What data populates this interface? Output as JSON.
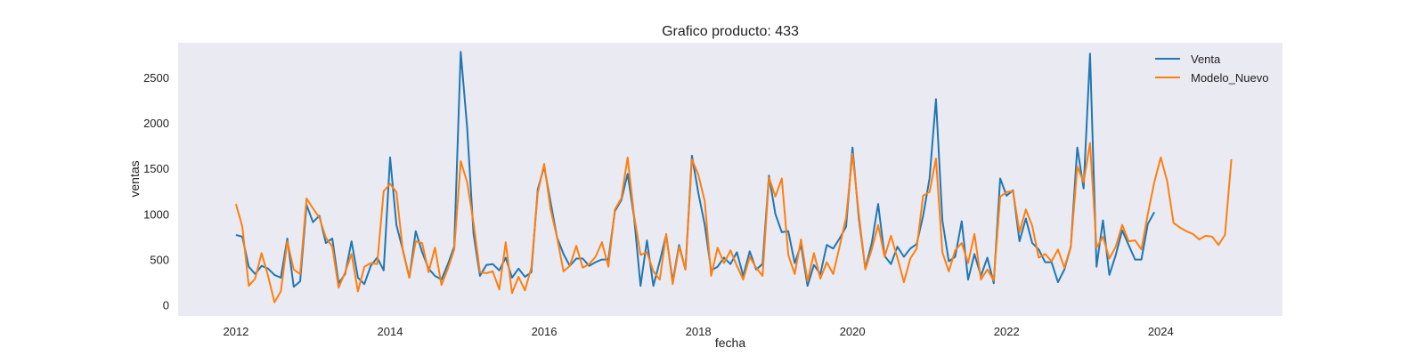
{
  "chart_data": {
    "type": "line",
    "title": "Grafico producto: 433",
    "xlabel": "fecha",
    "ylabel": "ventas",
    "xlim": [
      2011.25,
      2025.58
    ],
    "ylim": [
      -120,
      2880
    ],
    "x_ticks": [
      2012,
      2014,
      2016,
      2018,
      2020,
      2022,
      2024
    ],
    "x_tick_labels": [
      "2012",
      "2014",
      "2016",
      "2018",
      "2020",
      "2022",
      "2024"
    ],
    "y_ticks": [
      0,
      500,
      1000,
      1500,
      2000,
      2500
    ],
    "y_tick_labels": [
      "0",
      "500",
      "1000",
      "1500",
      "2000",
      "2500"
    ],
    "grid": false,
    "legend": "top-right",
    "background": "#eaeaf2",
    "series": [
      {
        "name": "Venta",
        "color": "#1f77b4",
        "x": [
          2012.0,
          2012.083,
          2012.167,
          2012.25,
          2012.333,
          2012.417,
          2012.5,
          2012.583,
          2012.667,
          2012.75,
          2012.833,
          2012.917,
          2013.0,
          2013.083,
          2013.167,
          2013.25,
          2013.333,
          2013.417,
          2013.5,
          2013.583,
          2013.667,
          2013.75,
          2013.833,
          2013.917,
          2014.0,
          2014.083,
          2014.167,
          2014.25,
          2014.333,
          2014.417,
          2014.5,
          2014.583,
          2014.667,
          2014.75,
          2014.833,
          2014.917,
          2015.0,
          2015.083,
          2015.167,
          2015.25,
          2015.333,
          2015.417,
          2015.5,
          2015.583,
          2015.667,
          2015.75,
          2015.833,
          2015.917,
          2016.0,
          2016.083,
          2016.167,
          2016.25,
          2016.333,
          2016.417,
          2016.5,
          2016.583,
          2016.667,
          2016.75,
          2016.833,
          2016.917,
          2017.0,
          2017.083,
          2017.167,
          2017.25,
          2017.333,
          2017.417,
          2017.5,
          2017.583,
          2017.667,
          2017.75,
          2017.833,
          2017.917,
          2018.0,
          2018.083,
          2018.167,
          2018.25,
          2018.333,
          2018.417,
          2018.5,
          2018.583,
          2018.667,
          2018.75,
          2018.833,
          2018.917,
          2019.0,
          2019.083,
          2019.167,
          2019.25,
          2019.333,
          2019.417,
          2019.5,
          2019.583,
          2019.667,
          2019.75,
          2019.833,
          2019.917,
          2020.0,
          2020.083,
          2020.167,
          2020.25,
          2020.333,
          2020.417,
          2020.5,
          2020.583,
          2020.667,
          2020.75,
          2020.833,
          2020.917,
          2021.0,
          2021.083,
          2021.167,
          2021.25,
          2021.333,
          2021.417,
          2021.5,
          2021.583,
          2021.667,
          2021.75,
          2021.833,
          2021.917,
          2022.0,
          2022.083,
          2022.167,
          2022.25,
          2022.333,
          2022.417,
          2022.5,
          2022.583,
          2022.667,
          2022.75,
          2022.833,
          2022.917,
          2023.0,
          2023.083,
          2023.167,
          2023.25,
          2023.333,
          2023.417,
          2023.5,
          2023.583,
          2023.667,
          2023.75,
          2023.833,
          2023.917
        ],
        "y": [
          770,
          750,
          420,
          340,
          430,
          400,
          330,
          300,
          730,
          200,
          260,
          1100,
          910,
          980,
          680,
          730,
          240,
          340,
          700,
          300,
          230,
          430,
          520,
          380,
          1620,
          880,
          600,
          300,
          810,
          580,
          400,
          320,
          280,
          450,
          640,
          2780,
          1950,
          780,
          320,
          440,
          450,
          380,
          520,
          300,
          400,
          310,
          360,
          1270,
          1520,
          1130,
          740,
          560,
          430,
          510,
          510,
          430,
          470,
          500,
          500,
          1030,
          1150,
          1440,
          960,
          210,
          710,
          210,
          480,
          770,
          260,
          660,
          390,
          1640,
          1230,
          880,
          380,
          420,
          520,
          450,
          580,
          320,
          590,
          390,
          450,
          1420,
          1000,
          800,
          810,
          460,
          660,
          210,
          440,
          340,
          660,
          620,
          730,
          860,
          1730,
          950,
          400,
          680,
          1110,
          540,
          450,
          640,
          530,
          620,
          670,
          980,
          1390,
          2260,
          930,
          480,
          530,
          920,
          280,
          560,
          320,
          520,
          240,
          1390,
          1200,
          1260,
          700,
          950,
          680,
          610,
          470,
          470,
          250,
          390,
          640,
          1730,
          1280,
          2760,
          420,
          930,
          330,
          550,
          820,
          660,
          500,
          500,
          890,
          1020
        ]
      },
      {
        "name": "Modelo_Nuevo",
        "color": "#ff7f0e",
        "x": [
          2012.0,
          2012.083,
          2012.167,
          2012.25,
          2012.333,
          2012.417,
          2012.5,
          2012.583,
          2012.667,
          2012.75,
          2012.833,
          2012.917,
          2013.0,
          2013.083,
          2013.167,
          2013.25,
          2013.333,
          2013.417,
          2013.5,
          2013.583,
          2013.667,
          2013.75,
          2013.833,
          2013.917,
          2014.0,
          2014.083,
          2014.167,
          2014.25,
          2014.333,
          2014.417,
          2014.5,
          2014.583,
          2014.667,
          2014.75,
          2014.833,
          2014.917,
          2015.0,
          2015.083,
          2015.167,
          2015.25,
          2015.333,
          2015.417,
          2015.5,
          2015.583,
          2015.667,
          2015.75,
          2015.833,
          2015.917,
          2016.0,
          2016.083,
          2016.167,
          2016.25,
          2016.333,
          2016.417,
          2016.5,
          2016.583,
          2016.667,
          2016.75,
          2016.833,
          2016.917,
          2017.0,
          2017.083,
          2017.167,
          2017.25,
          2017.333,
          2017.417,
          2017.5,
          2017.583,
          2017.667,
          2017.75,
          2017.833,
          2017.917,
          2018.0,
          2018.083,
          2018.167,
          2018.25,
          2018.333,
          2018.417,
          2018.5,
          2018.583,
          2018.667,
          2018.75,
          2018.833,
          2018.917,
          2019.0,
          2019.083,
          2019.167,
          2019.25,
          2019.333,
          2019.417,
          2019.5,
          2019.583,
          2019.667,
          2019.75,
          2019.833,
          2019.917,
          2020.0,
          2020.083,
          2020.167,
          2020.25,
          2020.333,
          2020.417,
          2020.5,
          2020.583,
          2020.667,
          2020.75,
          2020.833,
          2020.917,
          2021.0,
          2021.083,
          2021.167,
          2021.25,
          2021.333,
          2021.417,
          2021.5,
          2021.583,
          2021.667,
          2021.75,
          2021.833,
          2021.917,
          2022.0,
          2022.083,
          2022.167,
          2022.25,
          2022.333,
          2022.417,
          2022.5,
          2022.583,
          2022.667,
          2022.75,
          2022.833,
          2022.917,
          2023.0,
          2023.083,
          2023.167,
          2023.25,
          2023.333,
          2023.417,
          2023.5,
          2023.583,
          2023.667,
          2023.75,
          2023.833,
          2023.917,
          2024.0,
          2024.083,
          2024.167,
          2024.25,
          2024.333,
          2024.417,
          2024.5,
          2024.583,
          2024.667,
          2024.75,
          2024.833,
          2024.917
        ],
        "y": [
          1110,
          860,
          210,
          290,
          570,
          320,
          30,
          150,
          700,
          390,
          340,
          1170,
          1060,
          960,
          740,
          640,
          190,
          360,
          560,
          150,
          420,
          460,
          450,
          1250,
          1330,
          1240,
          590,
          300,
          700,
          680,
          360,
          630,
          220,
          400,
          610,
          1580,
          1350,
          900,
          360,
          350,
          370,
          170,
          690,
          130,
          310,
          160,
          410,
          1230,
          1550,
          1050,
          740,
          370,
          430,
          650,
          410,
          450,
          530,
          690,
          420,
          1050,
          1170,
          1620,
          980,
          550,
          580,
          370,
          280,
          780,
          230,
          640,
          390,
          1600,
          1430,
          1140,
          320,
          630,
          460,
          600,
          430,
          280,
          530,
          410,
          320,
          1400,
          1190,
          1390,
          550,
          340,
          720,
          260,
          570,
          290,
          470,
          340,
          640,
          960,
          1660,
          1000,
          390,
          610,
          880,
          530,
          760,
          520,
          250,
          510,
          620,
          1200,
          1240,
          1610,
          580,
          370,
          600,
          680,
          460,
          780,
          280,
          390,
          270,
          1190,
          1240,
          1250,
          800,
          1050,
          870,
          520,
          560,
          480,
          610,
          410,
          640,
          1520,
          1350,
          1780,
          630,
          750,
          510,
          640,
          880,
          700,
          710,
          610,
          1000,
          1350,
          1620,
          1360,
          900,
          850,
          810,
          780,
          720,
          760,
          750,
          660,
          770,
          1600
        ]
      }
    ]
  }
}
